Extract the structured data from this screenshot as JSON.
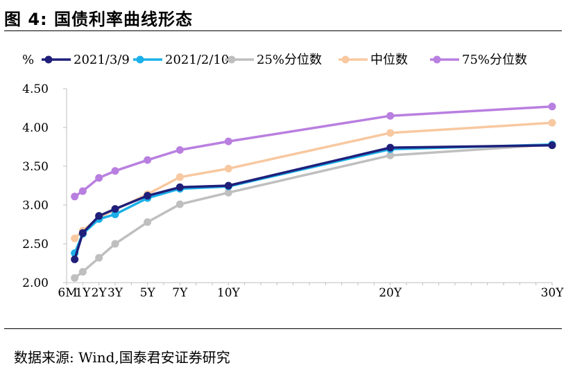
{
  "figure": {
    "title": "图 4:  国债利率曲线形态",
    "source": "数据来源:  Wind,国泰君安证券研究"
  },
  "chart_data": {
    "type": "line",
    "title": "",
    "ylabel": "%",
    "xlabel": "",
    "ylim": [
      2.0,
      4.5
    ],
    "yticks": [
      "4.50",
      "4.00",
      "3.50",
      "3.00",
      "2.50",
      "2.00"
    ],
    "ytick_values": [
      4.5,
      4.0,
      3.5,
      3.0,
      2.5,
      2.0
    ],
    "x_tick_labels": [
      "6M",
      "1Y",
      "2Y",
      "3Y",
      "5Y",
      "7Y",
      "10Y",
      "20Y",
      "30Y"
    ],
    "x_tick_years": [
      0.5,
      1,
      2,
      3,
      5,
      7,
      10,
      20,
      30
    ],
    "x": [
      0.5,
      1,
      2,
      3,
      5,
      7,
      10,
      20,
      30
    ],
    "grid": false,
    "legend": "top",
    "series": [
      {
        "name": "25%分位数",
        "color": "#BFBFBF",
        "values": [
          2.06,
          2.14,
          2.32,
          2.5,
          2.78,
          3.01,
          3.16,
          3.64,
          3.78
        ]
      },
      {
        "name": "中位数",
        "color": "#F8C8A0",
        "values": [
          2.57,
          2.67,
          2.84,
          2.94,
          3.14,
          3.36,
          3.47,
          3.93,
          4.06
        ]
      },
      {
        "name": "75%分位数",
        "color": "#B97FE0",
        "values": [
          3.11,
          3.18,
          3.35,
          3.44,
          3.58,
          3.71,
          3.82,
          4.15,
          4.27
        ]
      },
      {
        "name": "2021/2/10",
        "color": "#1BB0E8",
        "values": [
          2.38,
          2.63,
          2.82,
          2.88,
          3.09,
          3.21,
          3.24,
          3.72,
          3.78
        ]
      },
      {
        "name": "2021/3/9",
        "color": "#1F1F7A",
        "values": [
          2.3,
          2.64,
          2.86,
          2.95,
          3.12,
          3.23,
          3.25,
          3.74,
          3.77
        ]
      }
    ],
    "legend_order": [
      "2021/3/9",
      "2021/2/10",
      "25%分位数",
      "中位数",
      "75%分位数"
    ]
  }
}
